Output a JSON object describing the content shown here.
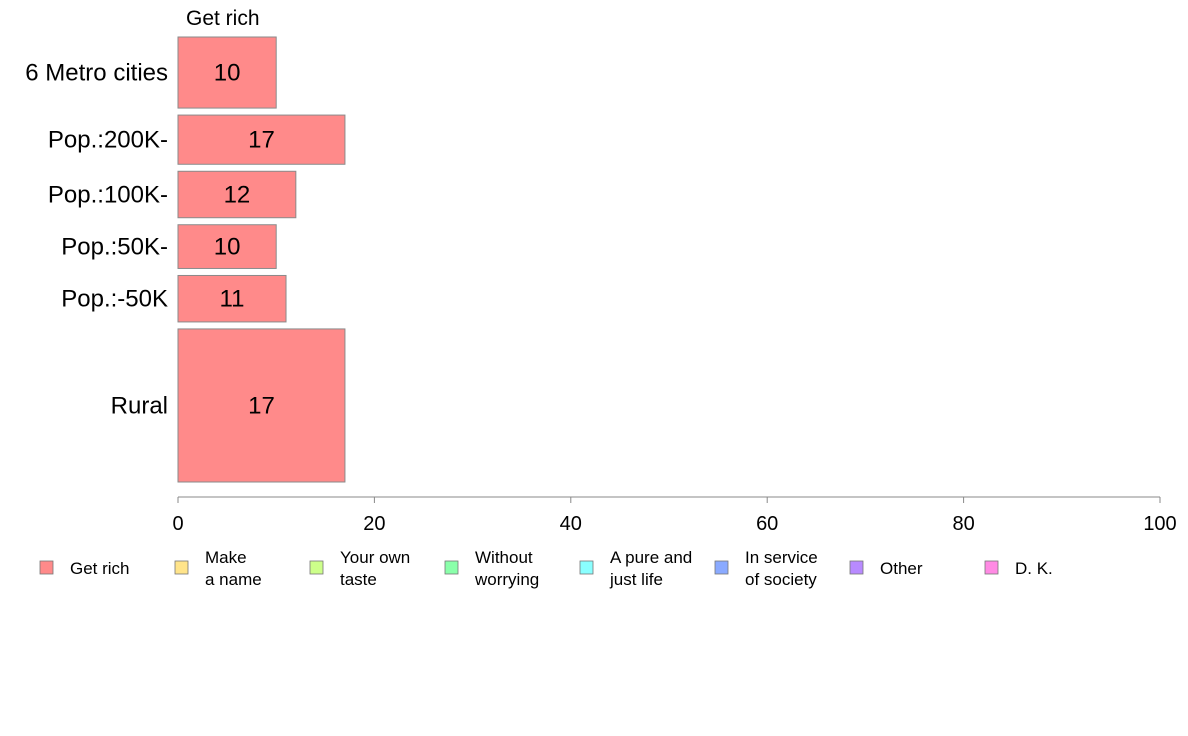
{
  "chart_data": {
    "type": "bar",
    "orientation": "horizontal",
    "stacked": true,
    "title": "",
    "xlabel": "",
    "ylabel": "",
    "xlim": [
      0,
      100
    ],
    "xticks": [
      0,
      20,
      40,
      60,
      80,
      100
    ],
    "grid": false,
    "shown_series_label": "Get rich",
    "categories": [
      "6 Metro cities",
      "Pop.:200K-",
      "Pop.:100K-",
      "Pop.:50K-",
      "Pop.:-50K",
      "Rural"
    ],
    "category_weights": [
      1.3,
      0.9,
      0.85,
      0.8,
      0.85,
      2.8
    ],
    "series": [
      {
        "name": "Get rich",
        "color": "#FF8A8A",
        "values": [
          10,
          17,
          12,
          10,
          11,
          17
        ]
      }
    ],
    "legend": {
      "placement": "bottom",
      "entries": [
        {
          "lines": [
            "Get rich"
          ],
          "color": "#FF8A8A"
        },
        {
          "lines": [
            "Make",
            "a name"
          ],
          "color": "#FFE48A"
        },
        {
          "lines": [
            "Your own",
            "taste"
          ],
          "color": "#CDFF8A"
        },
        {
          "lines": [
            "Without",
            "worrying"
          ],
          "color": "#8AFFAA"
        },
        {
          "lines": [
            "A pure and",
            "just life"
          ],
          "color": "#8AFFFF"
        },
        {
          "lines": [
            "In service",
            "of society"
          ],
          "color": "#8AAAFF"
        },
        {
          "lines": [
            "Other"
          ],
          "color": "#B88AFF"
        },
        {
          "lines": [
            "D. K."
          ],
          "color": "#FF8AE4"
        }
      ]
    }
  }
}
